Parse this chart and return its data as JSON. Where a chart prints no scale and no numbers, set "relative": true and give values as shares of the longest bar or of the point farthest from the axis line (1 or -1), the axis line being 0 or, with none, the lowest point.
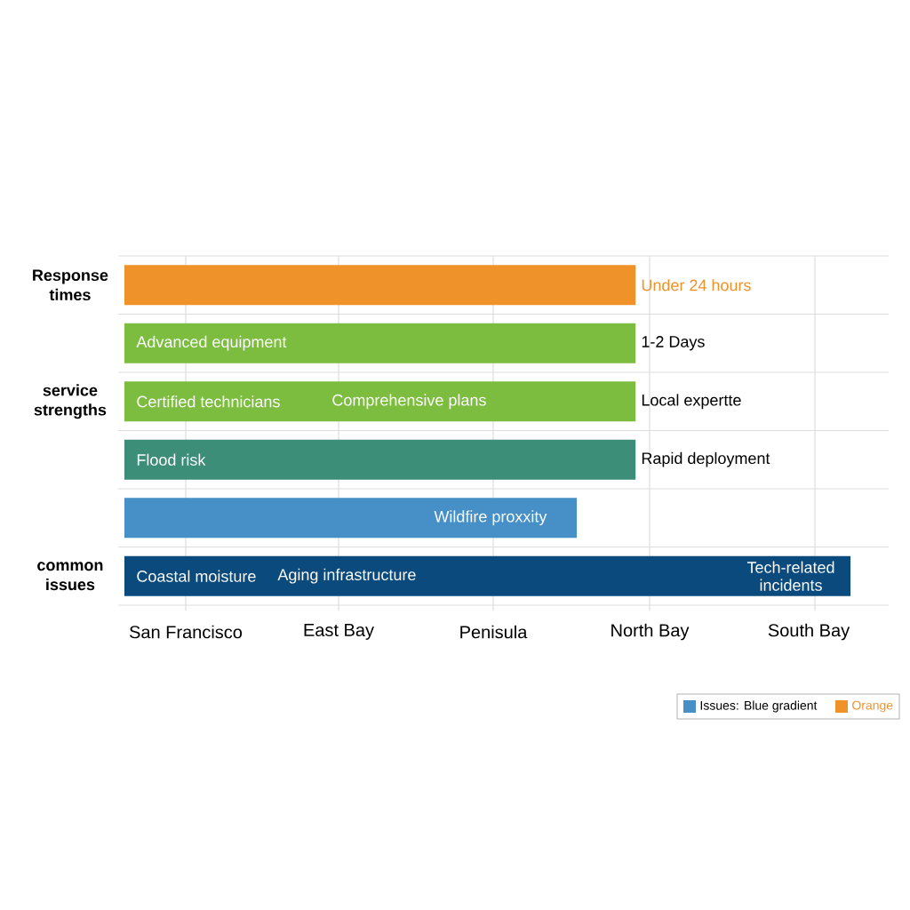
{
  "chart_data": {
    "type": "bar",
    "orientation": "horizontal",
    "relative": true,
    "grid": true,
    "categories": [
      "Response times",
      null,
      "service strengths",
      null,
      null,
      "common issues"
    ],
    "values": [
      0.704,
      0.704,
      0.704,
      0.704,
      0.623,
      1
    ],
    "colors": [
      "#f0922a",
      "#7cbd3f",
      "#7cbd3f",
      "#3d8e78",
      "#4690c7",
      "#0a4a7c"
    ],
    "annotations": [
      "San Francisco",
      "East Bay",
      "Penisula",
      "North Bay",
      "South Bay",
      "Under 24 hours",
      "Advanced equipment",
      "1-2 Days",
      "Certified technicians",
      "Comprehensive plans",
      "Local expertte",
      "Flood risk",
      "Rapid deployment",
      "Wildfire proxxity",
      "Coastal moisture",
      "Aging infrastructure",
      "Tech-related incidents",
      "Issues: Blue gradient",
      "Orange"
    ]
  }
}
